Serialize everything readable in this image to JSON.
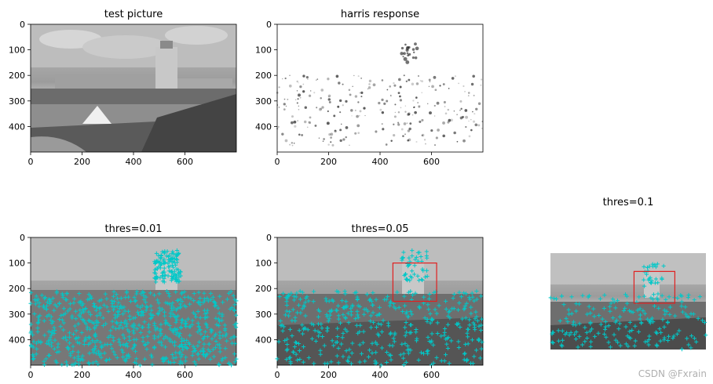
{
  "chart_data": [
    {
      "type": "image",
      "title": "test picture",
      "xlim": [
        0,
        800
      ],
      "ylim": [
        500,
        0
      ],
      "xticks": [
        0,
        200,
        400,
        600
      ],
      "yticks": [
        0,
        100,
        200,
        300,
        400
      ],
      "show_axes": true
    },
    {
      "type": "heatmap",
      "title": "harris response",
      "xlim": [
        0,
        800
      ],
      "ylim": [
        500,
        0
      ],
      "xticks": [
        0,
        200,
        400,
        600
      ],
      "yticks": [
        0,
        100,
        200,
        300,
        400
      ],
      "colormap": "gray_r",
      "show_axes": true
    },
    {
      "type": "scatter",
      "title": "thres=0.01",
      "xlim": [
        0,
        800
      ],
      "ylim": [
        500,
        0
      ],
      "xticks": [
        0,
        200,
        400,
        600
      ],
      "yticks": [
        0,
        100,
        200,
        300,
        400
      ],
      "marker": "+",
      "marker_color": "#00c8c8",
      "show_axes": true
    },
    {
      "type": "scatter",
      "title": "thres=0.05",
      "xlim": [
        0,
        800
      ],
      "ylim": [
        500,
        0
      ],
      "xticks": [
        0,
        200,
        400,
        600
      ],
      "yticks": [
        0,
        100,
        200,
        300,
        400
      ],
      "marker": "+",
      "marker_color": "#00c8c8",
      "box": {
        "x0": 450,
        "y0": 100,
        "x1": 620,
        "y1": 250,
        "color": "#e02020"
      },
      "show_axes": true
    },
    {
      "type": "scatter",
      "title": "thres=0.1",
      "xlim": [
        0,
        800
      ],
      "ylim": [
        500,
        0
      ],
      "marker": "+",
      "marker_color": "#00c8c8",
      "box": {
        "x0": 430,
        "y0": 95,
        "x1": 640,
        "y1": 260,
        "color": "#e02020"
      },
      "show_axes": false
    }
  ],
  "watermark": "CSDN @Fxrain"
}
